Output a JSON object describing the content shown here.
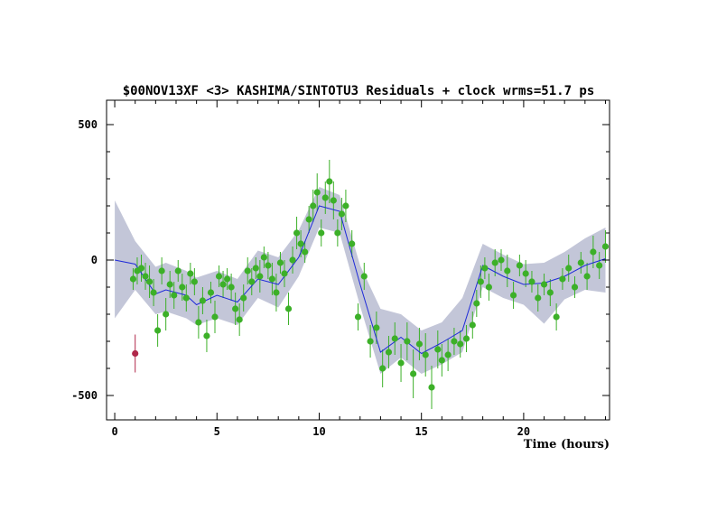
{
  "chart_data": {
    "type": "scatter",
    "title": "$00NOV13XF <3> KASHIMA/SINTOTU3 Residuals + clock wrms=51.7  ps",
    "xlabel": "Time (hours)",
    "ylabel": "",
    "xlim": [
      -0.4,
      24.2
    ],
    "ylim": [
      -590,
      590
    ],
    "x_ticks": [
      0,
      5,
      10,
      15,
      20
    ],
    "y_ticks": [
      -500,
      0,
      500
    ],
    "grid": false,
    "legend": "none",
    "colors": {
      "points": "#3cb028",
      "errorbars": "#3cb028",
      "clock_line": "#1e2ad8",
      "band": "#c3c6d8",
      "outlier": "#b0284a"
    },
    "clock_model": {
      "x": [
        0,
        1,
        2,
        2.5,
        3.5,
        4,
        5,
        6,
        7,
        8,
        9,
        10,
        11,
        12,
        13,
        14,
        15,
        16,
        17,
        18,
        19,
        20,
        21,
        22,
        23,
        24
      ],
      "y": [
        0,
        -15,
        -125,
        -110,
        -130,
        -165,
        -130,
        -155,
        -70,
        -90,
        10,
        200,
        180,
        -90,
        -340,
        -285,
        -345,
        -305,
        -260,
        -20,
        -60,
        -90,
        -85,
        -60,
        -20,
        5
      ],
      "upper": [
        220,
        70,
        -25,
        -10,
        -40,
        -65,
        -40,
        -70,
        35,
        10,
        110,
        270,
        240,
        -20,
        -180,
        -200,
        -260,
        -230,
        -140,
        60,
        20,
        -15,
        -10,
        30,
        80,
        120
      ],
      "lower": [
        -215,
        -110,
        -200,
        -190,
        -215,
        -240,
        -215,
        -240,
        -140,
        -175,
        -60,
        120,
        100,
        -170,
        -420,
        -360,
        -420,
        -385,
        -340,
        -100,
        -140,
        -165,
        -235,
        -145,
        -110,
        -120
      ]
    },
    "series": [
      {
        "x": [
          0.9,
          1.1,
          1.3,
          1.5,
          1.7,
          1.9,
          2.1,
          2.3,
          2.5,
          2.7,
          2.9,
          3.1,
          3.3,
          3.5,
          3.7,
          3.9,
          4.1,
          4.3,
          4.5,
          4.7,
          4.9,
          5.1,
          5.3,
          5.5,
          5.7,
          5.9,
          6.1,
          6.3,
          6.5,
          6.7,
          6.9,
          7.1,
          7.3,
          7.5,
          7.7,
          7.9,
          8.1,
          8.3,
          8.5,
          8.7,
          8.9,
          9.1,
          9.3,
          9.5,
          9.7,
          9.9,
          10.1,
          10.3,
          10.5,
          10.7,
          10.9,
          11.1,
          11.3,
          11.6,
          11.9,
          12.2,
          12.5,
          12.8,
          13.1,
          13.4,
          13.7,
          14.0,
          14.3,
          14.6,
          14.9,
          15.2,
          15.5,
          15.8,
          16.0,
          16.3,
          16.6,
          16.9,
          17.2,
          17.5,
          17.7,
          17.9,
          18.1,
          18.3,
          18.6,
          18.9,
          19.2,
          19.5,
          19.8,
          20.1,
          20.4,
          20.7,
          21.0,
          21.3,
          21.6,
          21.9,
          22.2,
          22.5,
          22.8,
          23.1,
          23.4,
          23.7,
          24.0
        ],
        "y": [
          -70,
          -40,
          -30,
          -60,
          -80,
          -120,
          -260,
          -40,
          -200,
          -90,
          -130,
          -40,
          -100,
          -140,
          -50,
          -80,
          -230,
          -150,
          -280,
          -120,
          -210,
          -60,
          -90,
          -70,
          -100,
          -180,
          -220,
          -140,
          -40,
          -80,
          -30,
          -60,
          10,
          -20,
          -70,
          -120,
          -10,
          -50,
          -180,
          0,
          100,
          60,
          30,
          150,
          200,
          250,
          100,
          230,
          290,
          220,
          100,
          170,
          200,
          60,
          -210,
          -60,
          -300,
          -250,
          -400,
          -340,
          -290,
          -380,
          -300,
          -420,
          -310,
          -350,
          -470,
          -330,
          -370,
          -350,
          -300,
          -310,
          -290,
          -240,
          -160,
          -80,
          -30,
          -100,
          -10,
          0,
          -40,
          -130,
          -20,
          -50,
          -80,
          -140,
          -90,
          -120,
          -210,
          -70,
          -30,
          -100,
          -10,
          -60,
          30,
          -20,
          50
        ],
        "err": [
          40,
          50,
          50,
          50,
          60,
          50,
          60,
          50,
          60,
          50,
          50,
          40,
          50,
          50,
          40,
          50,
          60,
          50,
          60,
          40,
          60,
          40,
          50,
          40,
          50,
          60,
          60,
          50,
          50,
          50,
          40,
          60,
          40,
          50,
          60,
          70,
          40,
          50,
          60,
          50,
          60,
          50,
          40,
          50,
          60,
          70,
          50,
          60,
          80,
          70,
          50,
          60,
          60,
          50,
          50,
          50,
          60,
          60,
          70,
          60,
          60,
          70,
          70,
          90,
          60,
          80,
          80,
          70,
          60,
          60,
          50,
          50,
          50,
          50,
          50,
          60,
          40,
          50,
          50,
          40,
          60,
          50,
          40,
          50,
          40,
          50,
          40,
          50,
          50,
          40,
          50,
          40,
          40,
          50,
          60,
          50,
          60
        ]
      },
      {
        "x": [
          1.0
        ],
        "y": [
          -345
        ],
        "err": [
          70
        ]
      }
    ]
  }
}
